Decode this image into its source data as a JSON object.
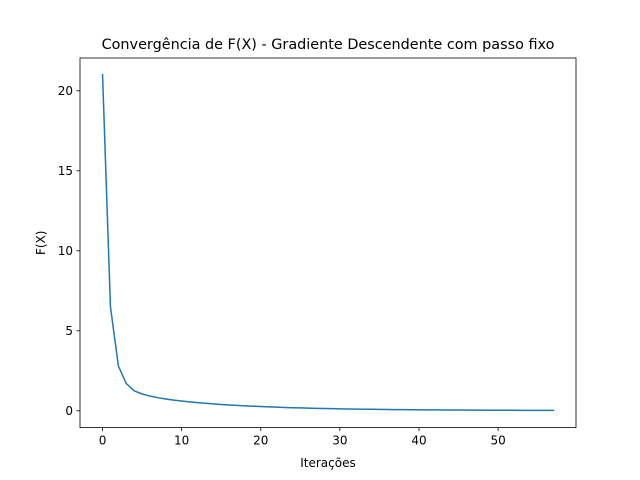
{
  "chart_data": {
    "type": "line",
    "title": "Convergência de F(X) - Gradiente Descendente com passo fixo",
    "xlabel": "Iterações",
    "ylabel": "F(X)",
    "xlim": [
      -2.85,
      59.85
    ],
    "ylim": [
      -1.05,
      22.05
    ],
    "xticks": [
      0,
      10,
      20,
      30,
      40,
      50
    ],
    "yticks": [
      0,
      5,
      10,
      15,
      20
    ],
    "grid": false,
    "series": [
      {
        "color": "#1f77b4",
        "x": [
          0,
          1,
          2,
          3,
          4,
          5,
          6,
          7,
          8,
          9,
          10,
          11,
          12,
          13,
          14,
          15,
          16,
          17,
          18,
          19,
          20,
          21,
          22,
          23,
          24,
          25,
          26,
          27,
          28,
          29,
          30,
          31,
          32,
          33,
          34,
          35,
          36,
          37,
          38,
          39,
          40,
          41,
          42,
          43,
          44,
          45,
          46,
          47,
          48,
          49,
          50,
          51,
          52,
          53,
          54,
          55,
          56,
          57
        ],
        "y": [
          21.0,
          6.5,
          2.8,
          1.7,
          1.25,
          1.05,
          0.92,
          0.82,
          0.74,
          0.67,
          0.61,
          0.56,
          0.51,
          0.47,
          0.43,
          0.395,
          0.365,
          0.337,
          0.311,
          0.287,
          0.265,
          0.245,
          0.227,
          0.21,
          0.194,
          0.18,
          0.167,
          0.155,
          0.144,
          0.134,
          0.124,
          0.115,
          0.107,
          0.1,
          0.093,
          0.087,
          0.081,
          0.076,
          0.071,
          0.066,
          0.062,
          0.058,
          0.055,
          0.052,
          0.049,
          0.046,
          0.043,
          0.041,
          0.039,
          0.037,
          0.035,
          0.033,
          0.031,
          0.03,
          0.029,
          0.028,
          0.027,
          0.026
        ]
      }
    ]
  }
}
